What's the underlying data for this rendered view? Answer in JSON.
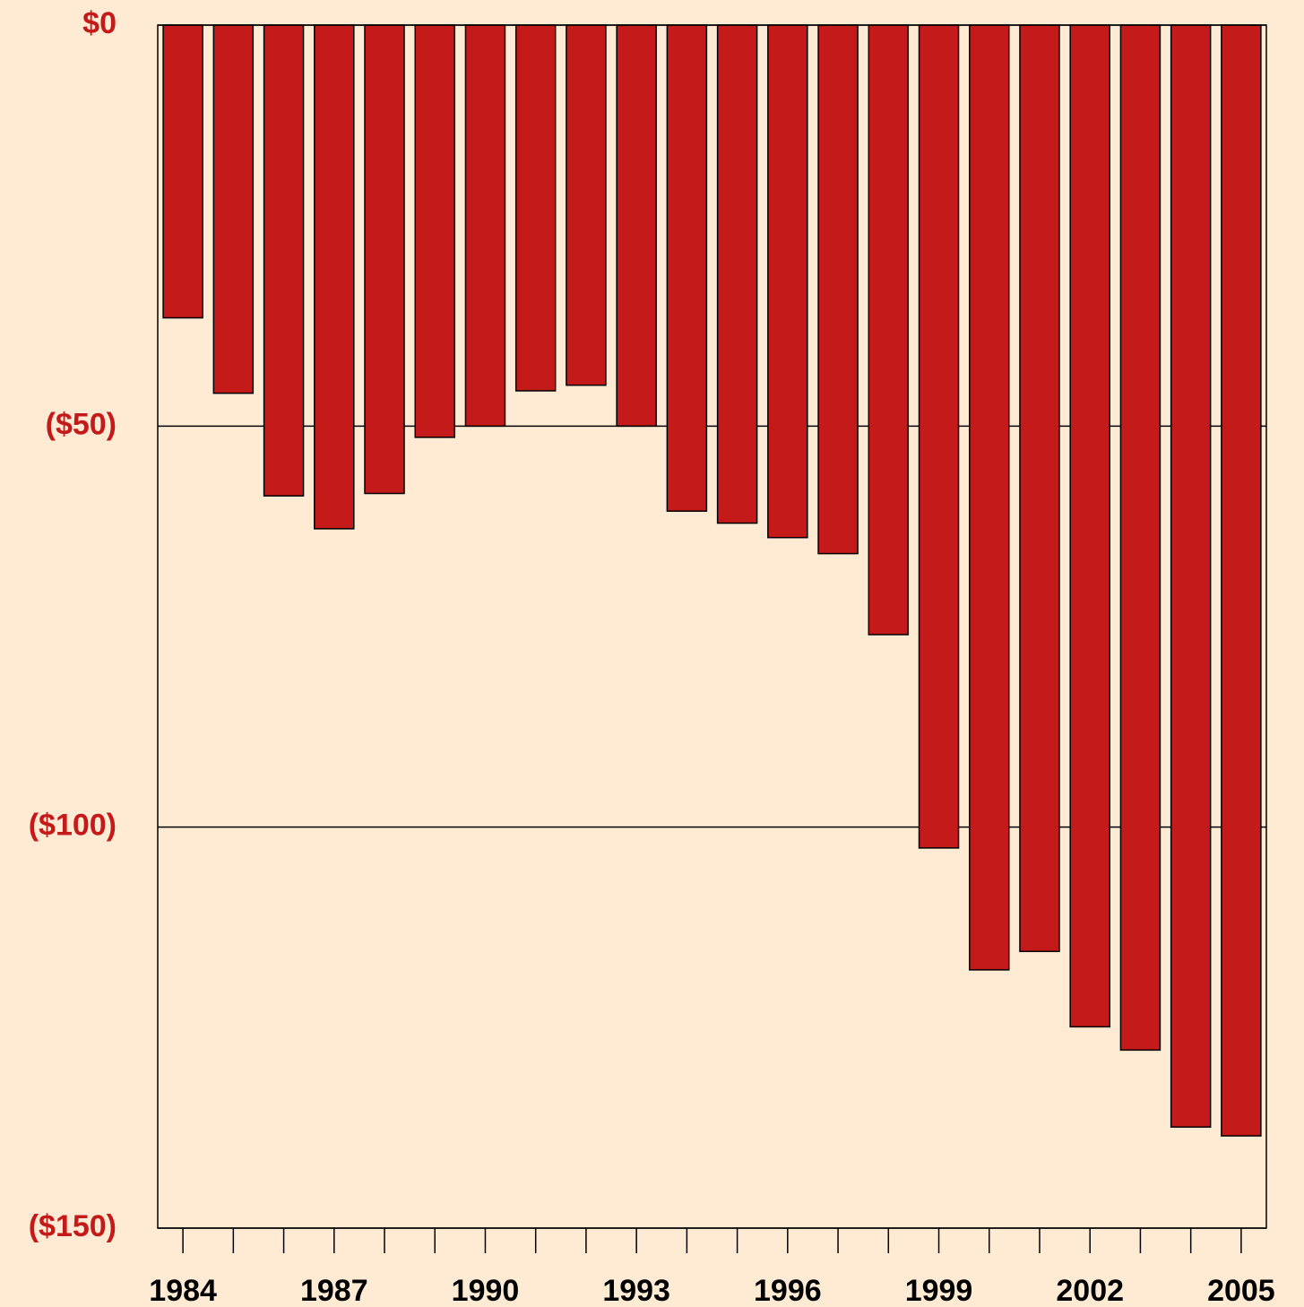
{
  "chart_data": {
    "type": "bar",
    "categories": [
      "1984",
      null,
      null,
      "1987",
      null,
      null,
      "1990",
      null,
      null,
      "1993",
      null,
      null,
      "1996",
      null,
      null,
      "1999",
      null,
      null,
      "2002",
      null,
      null,
      "2005"
    ],
    "values": [
      -36.5,
      -45.9,
      -58.7,
      -62.8,
      -58.4,
      -51.4,
      -50,
      -45.6,
      -44.9,
      -50,
      -60.6,
      -62.1,
      -63.9,
      -65.9,
      -76,
      -102.6,
      -117.8,
      -115.5,
      -124.9,
      -127.8,
      -137.4,
      -138.5
    ],
    "color": "#c41a1a",
    "ylim": [
      -150,
      0
    ],
    "yticks": [
      {
        "value": 0,
        "label": "$0"
      },
      {
        "value": -50,
        "label": "($50)"
      },
      {
        "value": -100,
        "label": "($100)"
      },
      {
        "value": -150,
        "label": "($150)"
      }
    ],
    "grid": true
  }
}
